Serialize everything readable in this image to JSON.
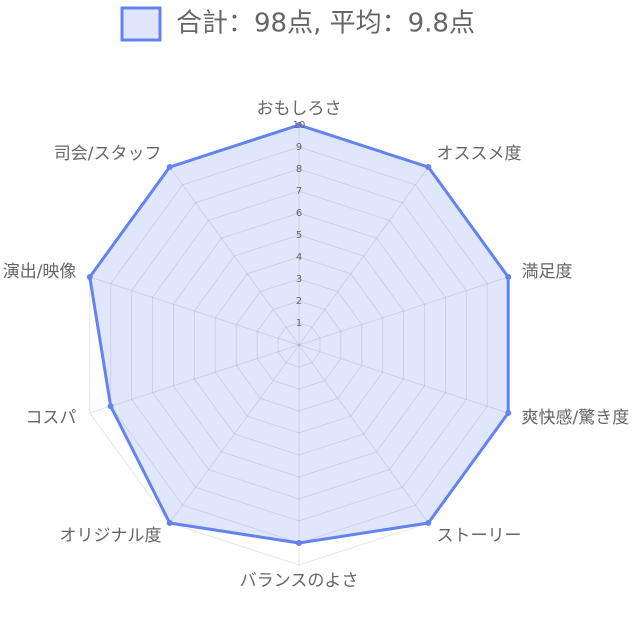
{
  "chart_data": {
    "type": "radar",
    "categories": [
      "おもしろさ",
      "オススメ度",
      "満足度",
      "爽快感/驚き度",
      "ストーリー",
      "バランスのよさ",
      "オリジナル度",
      "コスパ",
      "演出/映像",
      "司会/スタッフ"
    ],
    "series": [
      {
        "name": "合計：98点, 平均：9.8点",
        "color": "#6383f0",
        "values": [
          10,
          10,
          10,
          10,
          10,
          9,
          10,
          9,
          10,
          10
        ]
      }
    ],
    "rlim": [
      0,
      10
    ],
    "rticks": [
      1,
      2,
      3,
      4,
      5,
      6,
      7,
      8,
      9,
      10
    ],
    "grid": true
  }
}
